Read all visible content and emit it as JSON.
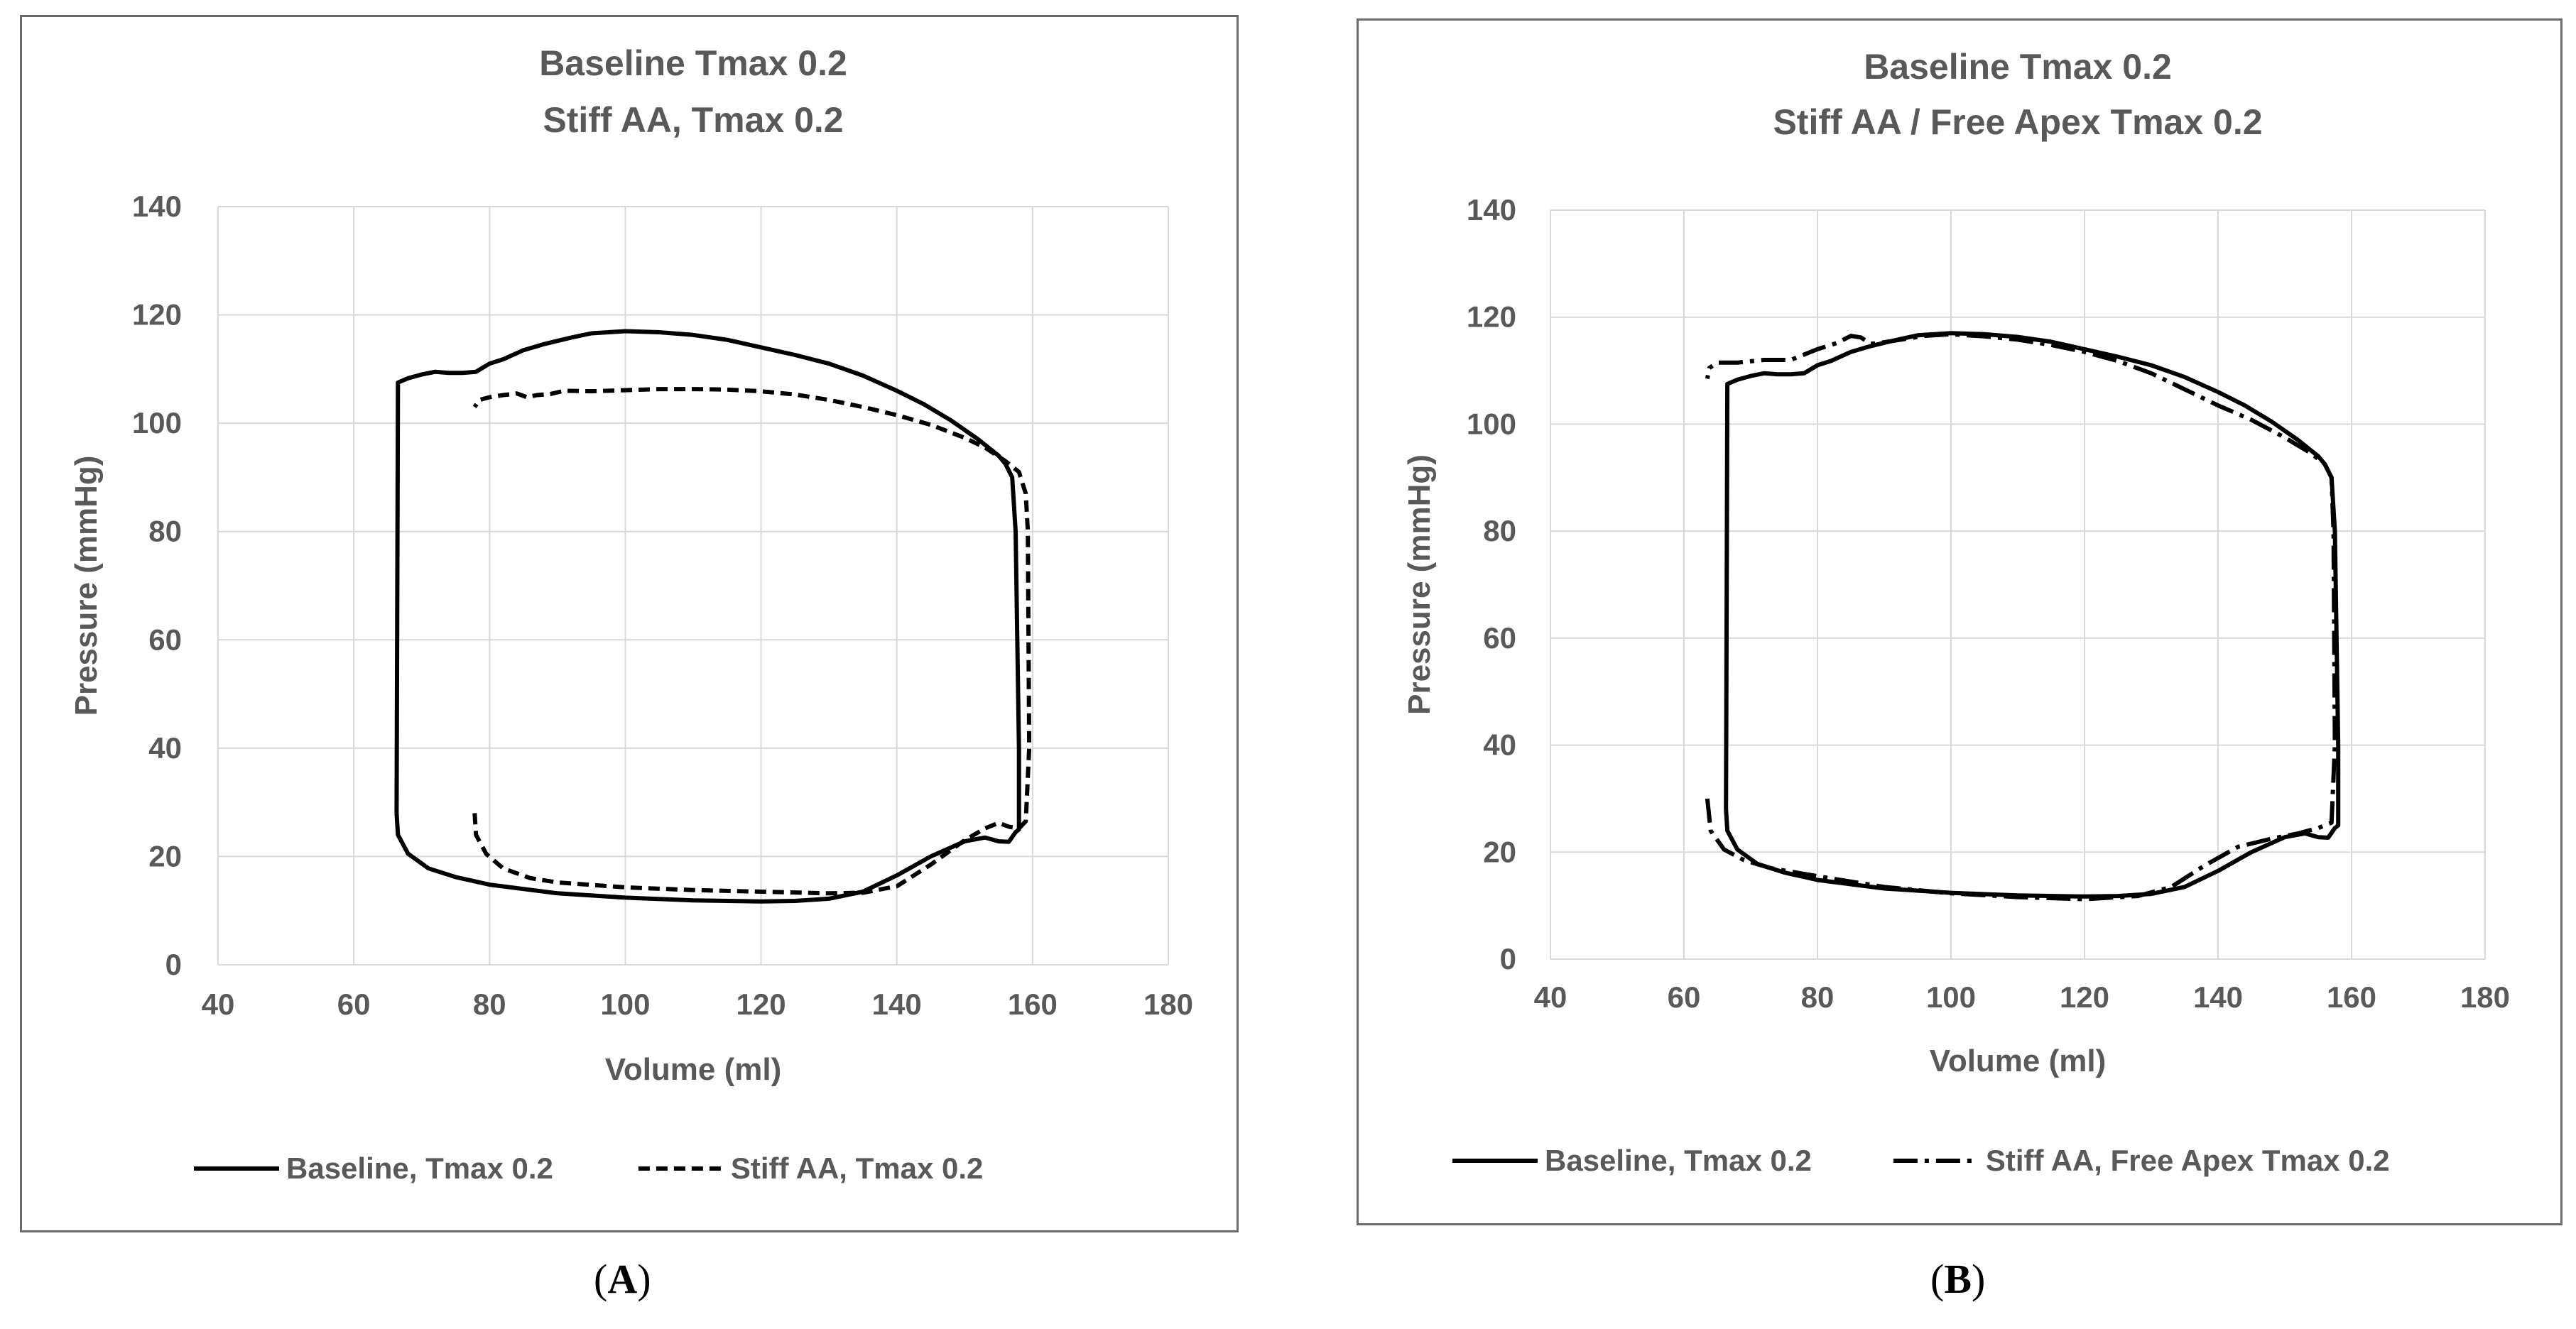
{
  "panels": {
    "a": {
      "label_open": "(",
      "label_letter": "A",
      "label_close": ")"
    },
    "b": {
      "label_open": "(",
      "label_letter": "B",
      "label_close": ")"
    }
  },
  "chart_data": [
    {
      "type": "line",
      "panel": "A",
      "title_lines": [
        "Baseline Tmax 0.2",
        "Stiff AA, Tmax 0.2"
      ],
      "xlabel": "Volume (ml)",
      "ylabel": "Pressure (mmHg)",
      "xlim": [
        40,
        180
      ],
      "ylim": [
        0,
        140
      ],
      "xticks": [
        40,
        60,
        80,
        100,
        120,
        140,
        160,
        180
      ],
      "yticks": [
        0,
        20,
        40,
        60,
        80,
        100,
        120,
        140
      ],
      "grid": true,
      "legend_position": "bottom",
      "series": [
        {
          "name": "Baseline, Tmax 0.2",
          "style": "solid",
          "x": [
            66.3,
            66.5,
            68,
            71,
            75,
            80,
            90,
            100,
            110,
            120,
            125,
            130,
            135,
            140,
            145,
            150,
            153,
            155,
            156.5,
            157.5,
            158,
            158,
            157.5,
            157,
            156,
            155,
            152,
            148,
            144,
            140,
            135,
            130,
            125,
            120,
            115,
            110,
            105,
            100,
            95,
            92,
            88,
            85,
            82,
            80,
            78,
            76,
            74,
            72,
            70,
            68,
            66.5,
            66.3
          ],
          "y": [
            28,
            24,
            20.5,
            17.8,
            16.2,
            14.8,
            13.2,
            12.4,
            11.9,
            11.7,
            11.8,
            12.2,
            13.5,
            16.5,
            20,
            22.8,
            23.5,
            22.8,
            22.7,
            24.5,
            25,
            40,
            80,
            90,
            92.5,
            94,
            97,
            100.5,
            103.5,
            106,
            108.8,
            111,
            112.6,
            114,
            115.4,
            116.3,
            116.8,
            117,
            116.6,
            115.8,
            114.6,
            113.5,
            111.8,
            111,
            109.5,
            109.3,
            109.3,
            109.5,
            109,
            108.3,
            107.5,
            28
          ]
        },
        {
          "name": "Stiff AA, Tmax 0.2",
          "style": "dashed",
          "x": [
            77.8,
            78,
            79.5,
            82,
            86,
            90,
            100,
            110,
            120,
            130,
            135,
            140,
            145,
            150,
            153,
            155,
            156.5,
            158,
            159,
            159.5,
            159.3,
            159,
            158,
            156,
            153,
            150,
            145,
            140,
            135,
            130,
            125,
            120,
            115,
            110,
            105,
            100,
            95,
            91,
            89,
            87,
            85.5,
            84,
            82,
            80,
            78.5,
            77.8
          ],
          "y": [
            28,
            24,
            20.5,
            17.8,
            16,
            15.2,
            14.3,
            13.8,
            13.5,
            13.2,
            13.3,
            14.5,
            18.5,
            23,
            25.2,
            26.2,
            25.5,
            25.2,
            26.5,
            40,
            80,
            87,
            91,
            93,
            95.5,
            97.3,
            99.7,
            101.5,
            103,
            104.3,
            105.3,
            105.9,
            106.2,
            106.3,
            106.3,
            106.1,
            105.9,
            106,
            105.4,
            105.2,
            104.8,
            105.5,
            105.2,
            104.8,
            104.3,
            103
          ]
        }
      ]
    },
    {
      "type": "line",
      "panel": "B",
      "title_lines": [
        "Baseline Tmax 0.2",
        "Stiff AA / Free Apex Tmax 0.2"
      ],
      "xlabel": "Volume (ml)",
      "ylabel": "Pressure (mmHg)",
      "xlim": [
        40,
        180
      ],
      "ylim": [
        0,
        140
      ],
      "xticks": [
        40,
        60,
        80,
        100,
        120,
        140,
        160,
        180
      ],
      "yticks": [
        0,
        20,
        40,
        60,
        80,
        100,
        120,
        140
      ],
      "grid": true,
      "legend_position": "bottom",
      "series": [
        {
          "name": "Baseline, Tmax 0.2",
          "style": "solid",
          "x": [
            66.3,
            66.5,
            68,
            71,
            75,
            80,
            90,
            100,
            110,
            120,
            125,
            130,
            135,
            140,
            145,
            150,
            153,
            155,
            156.5,
            157.5,
            158,
            158,
            157.5,
            157,
            156,
            155,
            152,
            148,
            144,
            140,
            135,
            130,
            125,
            120,
            115,
            110,
            105,
            100,
            95,
            92,
            88,
            85,
            82,
            80,
            78,
            76,
            74,
            72,
            70,
            68,
            66.5,
            66.3
          ],
          "y": [
            28,
            24,
            20.5,
            17.8,
            16.2,
            14.8,
            13.2,
            12.4,
            11.9,
            11.7,
            11.8,
            12.2,
            13.5,
            16.5,
            20,
            22.8,
            23.5,
            22.8,
            22.7,
            24.5,
            25,
            40,
            80,
            90,
            92.5,
            94,
            97,
            100.5,
            103.5,
            106,
            108.8,
            111,
            112.6,
            114,
            115.4,
            116.3,
            116.8,
            117,
            116.6,
            115.8,
            114.6,
            113.5,
            111.8,
            111,
            109.5,
            109.3,
            109.3,
            109.5,
            109,
            108.3,
            107.5,
            28
          ]
        },
        {
          "name": "Stiff AA, Free Apex Tmax 0.2",
          "style": "dashdot",
          "x": [
            63.5,
            64,
            66,
            69,
            73,
            80,
            90,
            100,
            110,
            120,
            128,
            133,
            138,
            143,
            148,
            152,
            155,
            157,
            157.5,
            157.3,
            157,
            156,
            154,
            150,
            145,
            140,
            135,
            130,
            125,
            120,
            115,
            110,
            105,
            100,
            96,
            93,
            90,
            88,
            86.5,
            85,
            83,
            80,
            76,
            72,
            68,
            65,
            63.8,
            63.5
          ],
          "y": [
            30,
            24,
            20.5,
            18.5,
            17,
            15.5,
            13.5,
            12.3,
            11.6,
            11.2,
            11.8,
            13.5,
            17.5,
            21,
            22.5,
            23.5,
            24.5,
            25.5,
            40,
            80,
            90,
            92.5,
            94.5,
            97.5,
            100.8,
            103.5,
            106.5,
            109.5,
            111.8,
            113.5,
            114.8,
            115.8,
            116.4,
            116.8,
            116.5,
            115.9,
            115.3,
            115,
            116.2,
            116.5,
            115.2,
            114,
            112,
            112,
            111.5,
            111.5,
            110.5,
            108.5
          ]
        }
      ]
    }
  ]
}
